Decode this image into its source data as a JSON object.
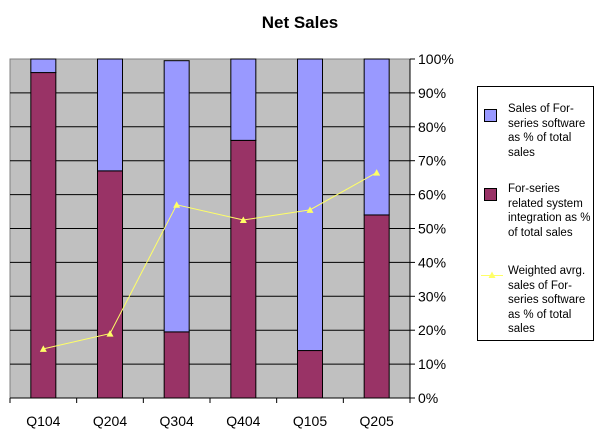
{
  "chart_data": {
    "type": "bar",
    "stacked": true,
    "title": "Net Sales",
    "categories": [
      "Q104",
      "Q204",
      "Q304",
      "Q404",
      "Q105",
      "Q205"
    ],
    "series": [
      {
        "name": "For-series related system integration as % of total sales",
        "type": "bar",
        "color": "#993366",
        "values": [
          96,
          67,
          19.5,
          76,
          14,
          54
        ]
      },
      {
        "name": "Sales of For-series software as % of total sales",
        "type": "bar",
        "color": "#9999ff",
        "values": [
          4,
          33,
          80,
          24,
          86,
          46
        ]
      },
      {
        "name": "Weighted avrg. sales of For-series software as % of total sales",
        "type": "line",
        "color": "#ffff66",
        "values": [
          14.5,
          19,
          57,
          52.5,
          55.5,
          66.5
        ]
      }
    ],
    "ylim": [
      0,
      100
    ],
    "yticks": [
      "0%",
      "10%",
      "20%",
      "30%",
      "40%",
      "50%",
      "60%",
      "70%",
      "80%",
      "90%",
      "100%"
    ],
    "xlabel": "",
    "ylabel": "",
    "grid": true,
    "legend_position": "right",
    "plot_background": "#c0c0c0"
  }
}
